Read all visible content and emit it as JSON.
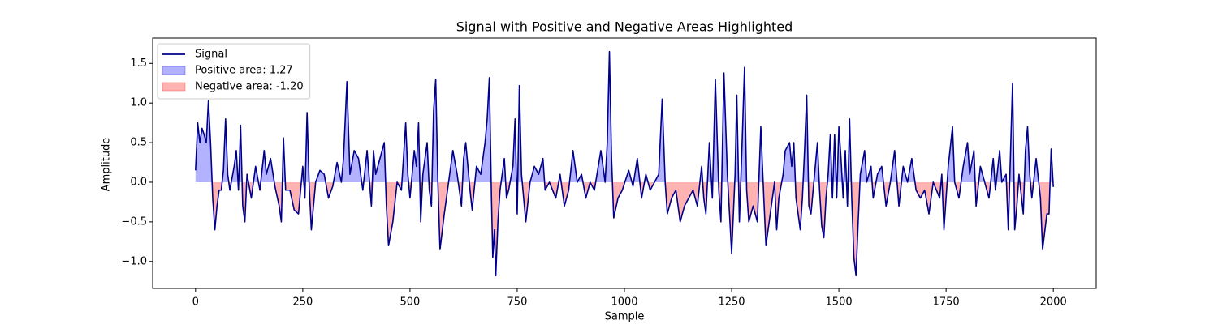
{
  "chart_data": {
    "type": "line",
    "title": "Signal with Positive and Negative Areas Highlighted",
    "xlabel": "Sample",
    "ylabel": "Amplitude",
    "xlim": [
      -100,
      2100
    ],
    "ylim": [
      -1.34,
      1.82
    ],
    "xticks": [
      0,
      250,
      500,
      750,
      1000,
      1250,
      1500,
      1750,
      2000
    ],
    "yticks": [
      {
        "value": -1.0,
        "label": "−1.0"
      },
      {
        "value": -0.5,
        "label": "−0.5"
      },
      {
        "value": 0.0,
        "label": "0.0"
      },
      0.5,
      {
        "value": 1.0,
        "label": "1.0"
      },
      1.5
    ],
    "legend": "upper left",
    "x": [
      0,
      5,
      10,
      15,
      20,
      25,
      30,
      35,
      40,
      45,
      50,
      55,
      60,
      65,
      70,
      75,
      80,
      90,
      95,
      100,
      105,
      110,
      115,
      120,
      130,
      140,
      150,
      160,
      165,
      175,
      185,
      195,
      200,
      205,
      210,
      220,
      230,
      240,
      250,
      255,
      260,
      265,
      270,
      280,
      290,
      300,
      310,
      320,
      330,
      340,
      345,
      353,
      360,
      370,
      380,
      390,
      400,
      410,
      415,
      420,
      430,
      440,
      445,
      450,
      460,
      470,
      480,
      490,
      495,
      500,
      510,
      515,
      520,
      525,
      530,
      540,
      545,
      550,
      555,
      560,
      565,
      570,
      580,
      590,
      600,
      610,
      620,
      625,
      630,
      640,
      645,
      655,
      665,
      675,
      680,
      685,
      690,
      693,
      697,
      700,
      705,
      710,
      720,
      725,
      730,
      740,
      745,
      750,
      755,
      760,
      770,
      780,
      790,
      800,
      810,
      815,
      825,
      840,
      850,
      860,
      870,
      880,
      890,
      900,
      910,
      920,
      930,
      945,
      955,
      960,
      965,
      970,
      975,
      985,
      995,
      1010,
      1020,
      1030,
      1040,
      1050,
      1060,
      1070,
      1080,
      1088,
      1095,
      1100,
      1110,
      1120,
      1130,
      1140,
      1150,
      1160,
      1170,
      1180,
      1185,
      1190,
      1198,
      1205,
      1212,
      1220,
      1225,
      1232,
      1240,
      1250,
      1258,
      1262,
      1268,
      1275,
      1280,
      1285,
      1290,
      1300,
      1310,
      1318,
      1325,
      1330,
      1340,
      1350,
      1355,
      1360,
      1370,
      1375,
      1385,
      1390,
      1395,
      1400,
      1410,
      1415,
      1420,
      1425,
      1430,
      1435,
      1445,
      1450,
      1455,
      1460,
      1465,
      1470,
      1475,
      1480,
      1485,
      1490,
      1495,
      1500,
      1505,
      1510,
      1515,
      1520,
      1525,
      1530,
      1535,
      1540,
      1545,
      1550,
      1560,
      1565,
      1575,
      1580,
      1590,
      1600,
      1610,
      1620,
      1630,
      1640,
      1650,
      1660,
      1670,
      1680,
      1690,
      1700,
      1710,
      1720,
      1735,
      1740,
      1745,
      1755,
      1765,
      1770,
      1780,
      1790,
      1800,
      1805,
      1815,
      1820,
      1830,
      1840,
      1850,
      1860,
      1865,
      1875,
      1880,
      1890,
      1895,
      1905,
      1910,
      1915,
      1920,
      1930,
      1935,
      1940,
      1945,
      1950,
      1960,
      1970,
      1975,
      1985,
      1990,
      1995,
      2000
    ],
    "series": [
      {
        "name": "Signal",
        "color": "#00008b",
        "values": [
          0.15,
          0.75,
          0.5,
          0.68,
          0.6,
          0.5,
          1.03,
          0.5,
          -0.2,
          -0.6,
          -0.3,
          -0.1,
          -0.1,
          0.15,
          0.8,
          0.1,
          -0.1,
          0.2,
          0.4,
          -0.1,
          0.72,
          -0.3,
          -0.5,
          0.1,
          -0.2,
          0.2,
          -0.1,
          0.4,
          0.1,
          0.3,
          -0.05,
          -0.3,
          -0.5,
          0.56,
          -0.1,
          -0.1,
          -0.35,
          -0.4,
          0.2,
          -0.2,
          0.88,
          -0.05,
          -0.6,
          0.0,
          0.15,
          0.1,
          -0.2,
          -0.05,
          0.25,
          0.0,
          0.3,
          1.27,
          0.1,
          0.4,
          0.3,
          -0.1,
          0.4,
          -0.3,
          0.4,
          0.1,
          0.3,
          0.5,
          -0.3,
          -0.8,
          -0.5,
          0.0,
          -0.1,
          0.75,
          0.1,
          -0.2,
          0.4,
          0.2,
          0.75,
          -0.5,
          0.1,
          0.5,
          -0.1,
          -0.3,
          0.9,
          1.3,
          0.0,
          -0.85,
          -0.4,
          0.0,
          0.4,
          0.1,
          -0.3,
          0.3,
          0.5,
          -0.1,
          -0.35,
          0.2,
          0.1,
          0.5,
          0.8,
          1.32,
          -0.2,
          -0.95,
          -0.6,
          -1.18,
          -0.5,
          -0.1,
          0.3,
          -0.2,
          -0.1,
          0.2,
          0.8,
          -0.4,
          1.22,
          0.1,
          -0.5,
          0.0,
          0.2,
          0.1,
          0.3,
          -0.1,
          0.0,
          -0.2,
          0.1,
          -0.3,
          -0.1,
          0.4,
          0.0,
          0.1,
          -0.2,
          0.0,
          -0.1,
          0.4,
          0.0,
          0.5,
          1.65,
          0.3,
          -0.45,
          -0.2,
          -0.1,
          0.15,
          -0.05,
          0.3,
          -0.2,
          0.1,
          -0.1,
          0.0,
          0.1,
          1.05,
          0.0,
          -0.4,
          -0.2,
          -0.1,
          -0.5,
          -0.3,
          -0.2,
          -0.1,
          -0.3,
          0.2,
          -0.2,
          -0.4,
          0.5,
          -0.2,
          1.3,
          -0.1,
          -0.5,
          1.38,
          0.1,
          -0.9,
          0.1,
          1.1,
          -0.5,
          0.6,
          1.45,
          -0.1,
          -0.5,
          -0.3,
          -0.5,
          0.7,
          -0.2,
          -0.8,
          -0.4,
          0.0,
          -0.6,
          -0.2,
          0.1,
          0.4,
          0.5,
          0.2,
          0.5,
          -0.2,
          -0.6,
          -0.2,
          0.4,
          1.1,
          -0.3,
          -0.4,
          0.2,
          0.5,
          -0.1,
          -0.55,
          -0.7,
          -0.2,
          0.1,
          0.6,
          -0.2,
          0.6,
          -0.2,
          0.7,
          0.3,
          -0.2,
          0.4,
          -0.3,
          0.8,
          -0.2,
          -0.95,
          -1.18,
          -0.5,
          0.1,
          0.4,
          0.0,
          0.2,
          -0.2,
          0.1,
          0.2,
          -0.3,
          0.0,
          0.4,
          -0.3,
          0.2,
          0.0,
          0.3,
          -0.1,
          -0.2,
          -0.1,
          -0.4,
          0.0,
          -0.2,
          0.1,
          -0.6,
          0.2,
          0.7,
          0.0,
          -0.2,
          0.2,
          0.5,
          0.1,
          0.4,
          -0.3,
          0.2,
          0.0,
          -0.2,
          0.3,
          -0.1,
          0.4,
          0.0,
          0.1,
          -0.6,
          1.25,
          -0.6,
          -0.3,
          0.1,
          -0.4,
          0.4,
          0.7,
          0.1,
          -0.2,
          0.3,
          -0.2,
          -0.85,
          -0.4,
          -0.4,
          0.42,
          -0.06
        ]
      }
    ],
    "fills": [
      {
        "name": "Positive area: 1.27",
        "color": "blue"
      },
      {
        "name": "Negative area: -1.20",
        "color": "red"
      }
    ]
  }
}
